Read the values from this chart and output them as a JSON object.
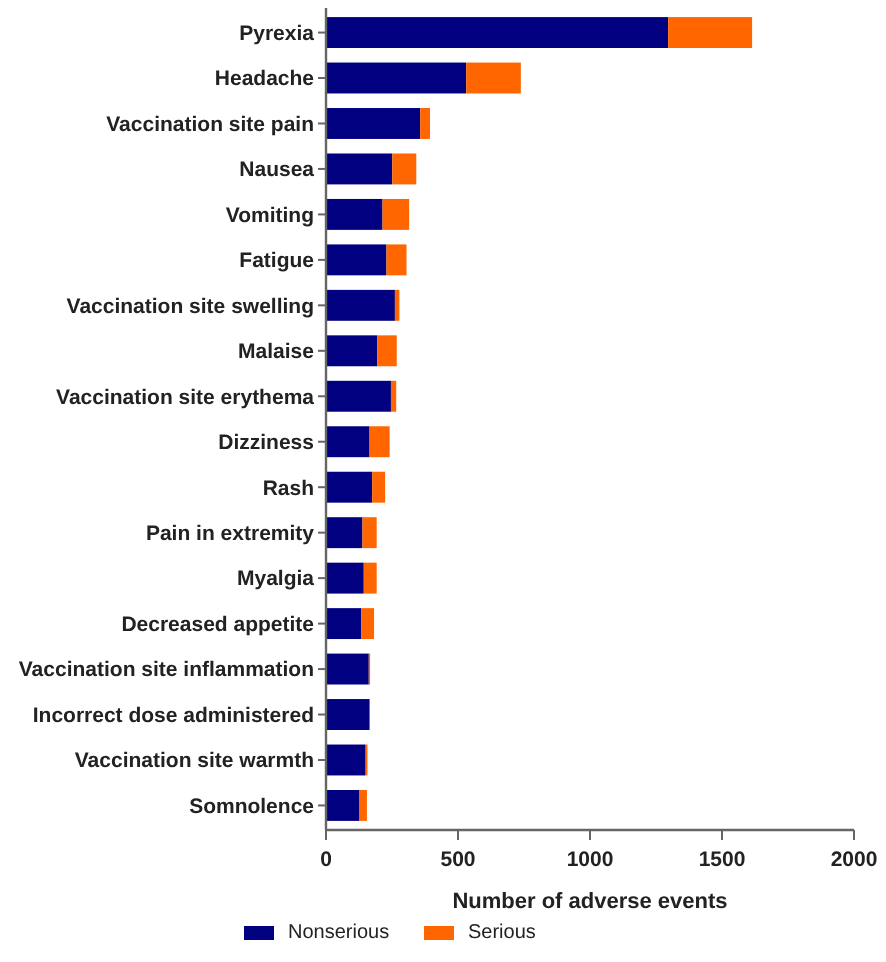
{
  "chart_data": {
    "type": "bar",
    "orientation": "horizontal",
    "stacked": true,
    "xlabel": "Number of adverse events",
    "categories": [
      "Pyrexia",
      "Headache",
      "Vaccination site pain",
      "Nausea",
      "Vomiting",
      "Fatigue",
      "Vaccination site swelling",
      "Malaise",
      "Vaccination site erythema",
      "Dizziness",
      "Rash",
      "Pain in extremity",
      "Myalgia",
      "Decreased appetite",
      "Vaccination site inflammation",
      "Incorrect dose administered",
      "Vaccination site warmth",
      "Somnolence"
    ],
    "series": [
      {
        "name": "Nonserious",
        "color": "#000080",
        "values": [
          1296,
          531,
          357,
          251,
          214,
          229,
          261,
          194,
          246,
          165,
          175,
          138,
          143,
          133,
          162,
          165,
          150,
          125
        ]
      },
      {
        "name": "Serious",
        "color": "#ff6600",
        "values": [
          318,
          207,
          37,
          91,
          101,
          76,
          17,
          74,
          20,
          76,
          49,
          54,
          49,
          49,
          5,
          0,
          7,
          30
        ]
      }
    ],
    "xlim": [
      0,
      2000
    ],
    "xticks": [
      0,
      500,
      1000,
      1500,
      2000
    ],
    "grid": false,
    "legend": "bottom"
  }
}
